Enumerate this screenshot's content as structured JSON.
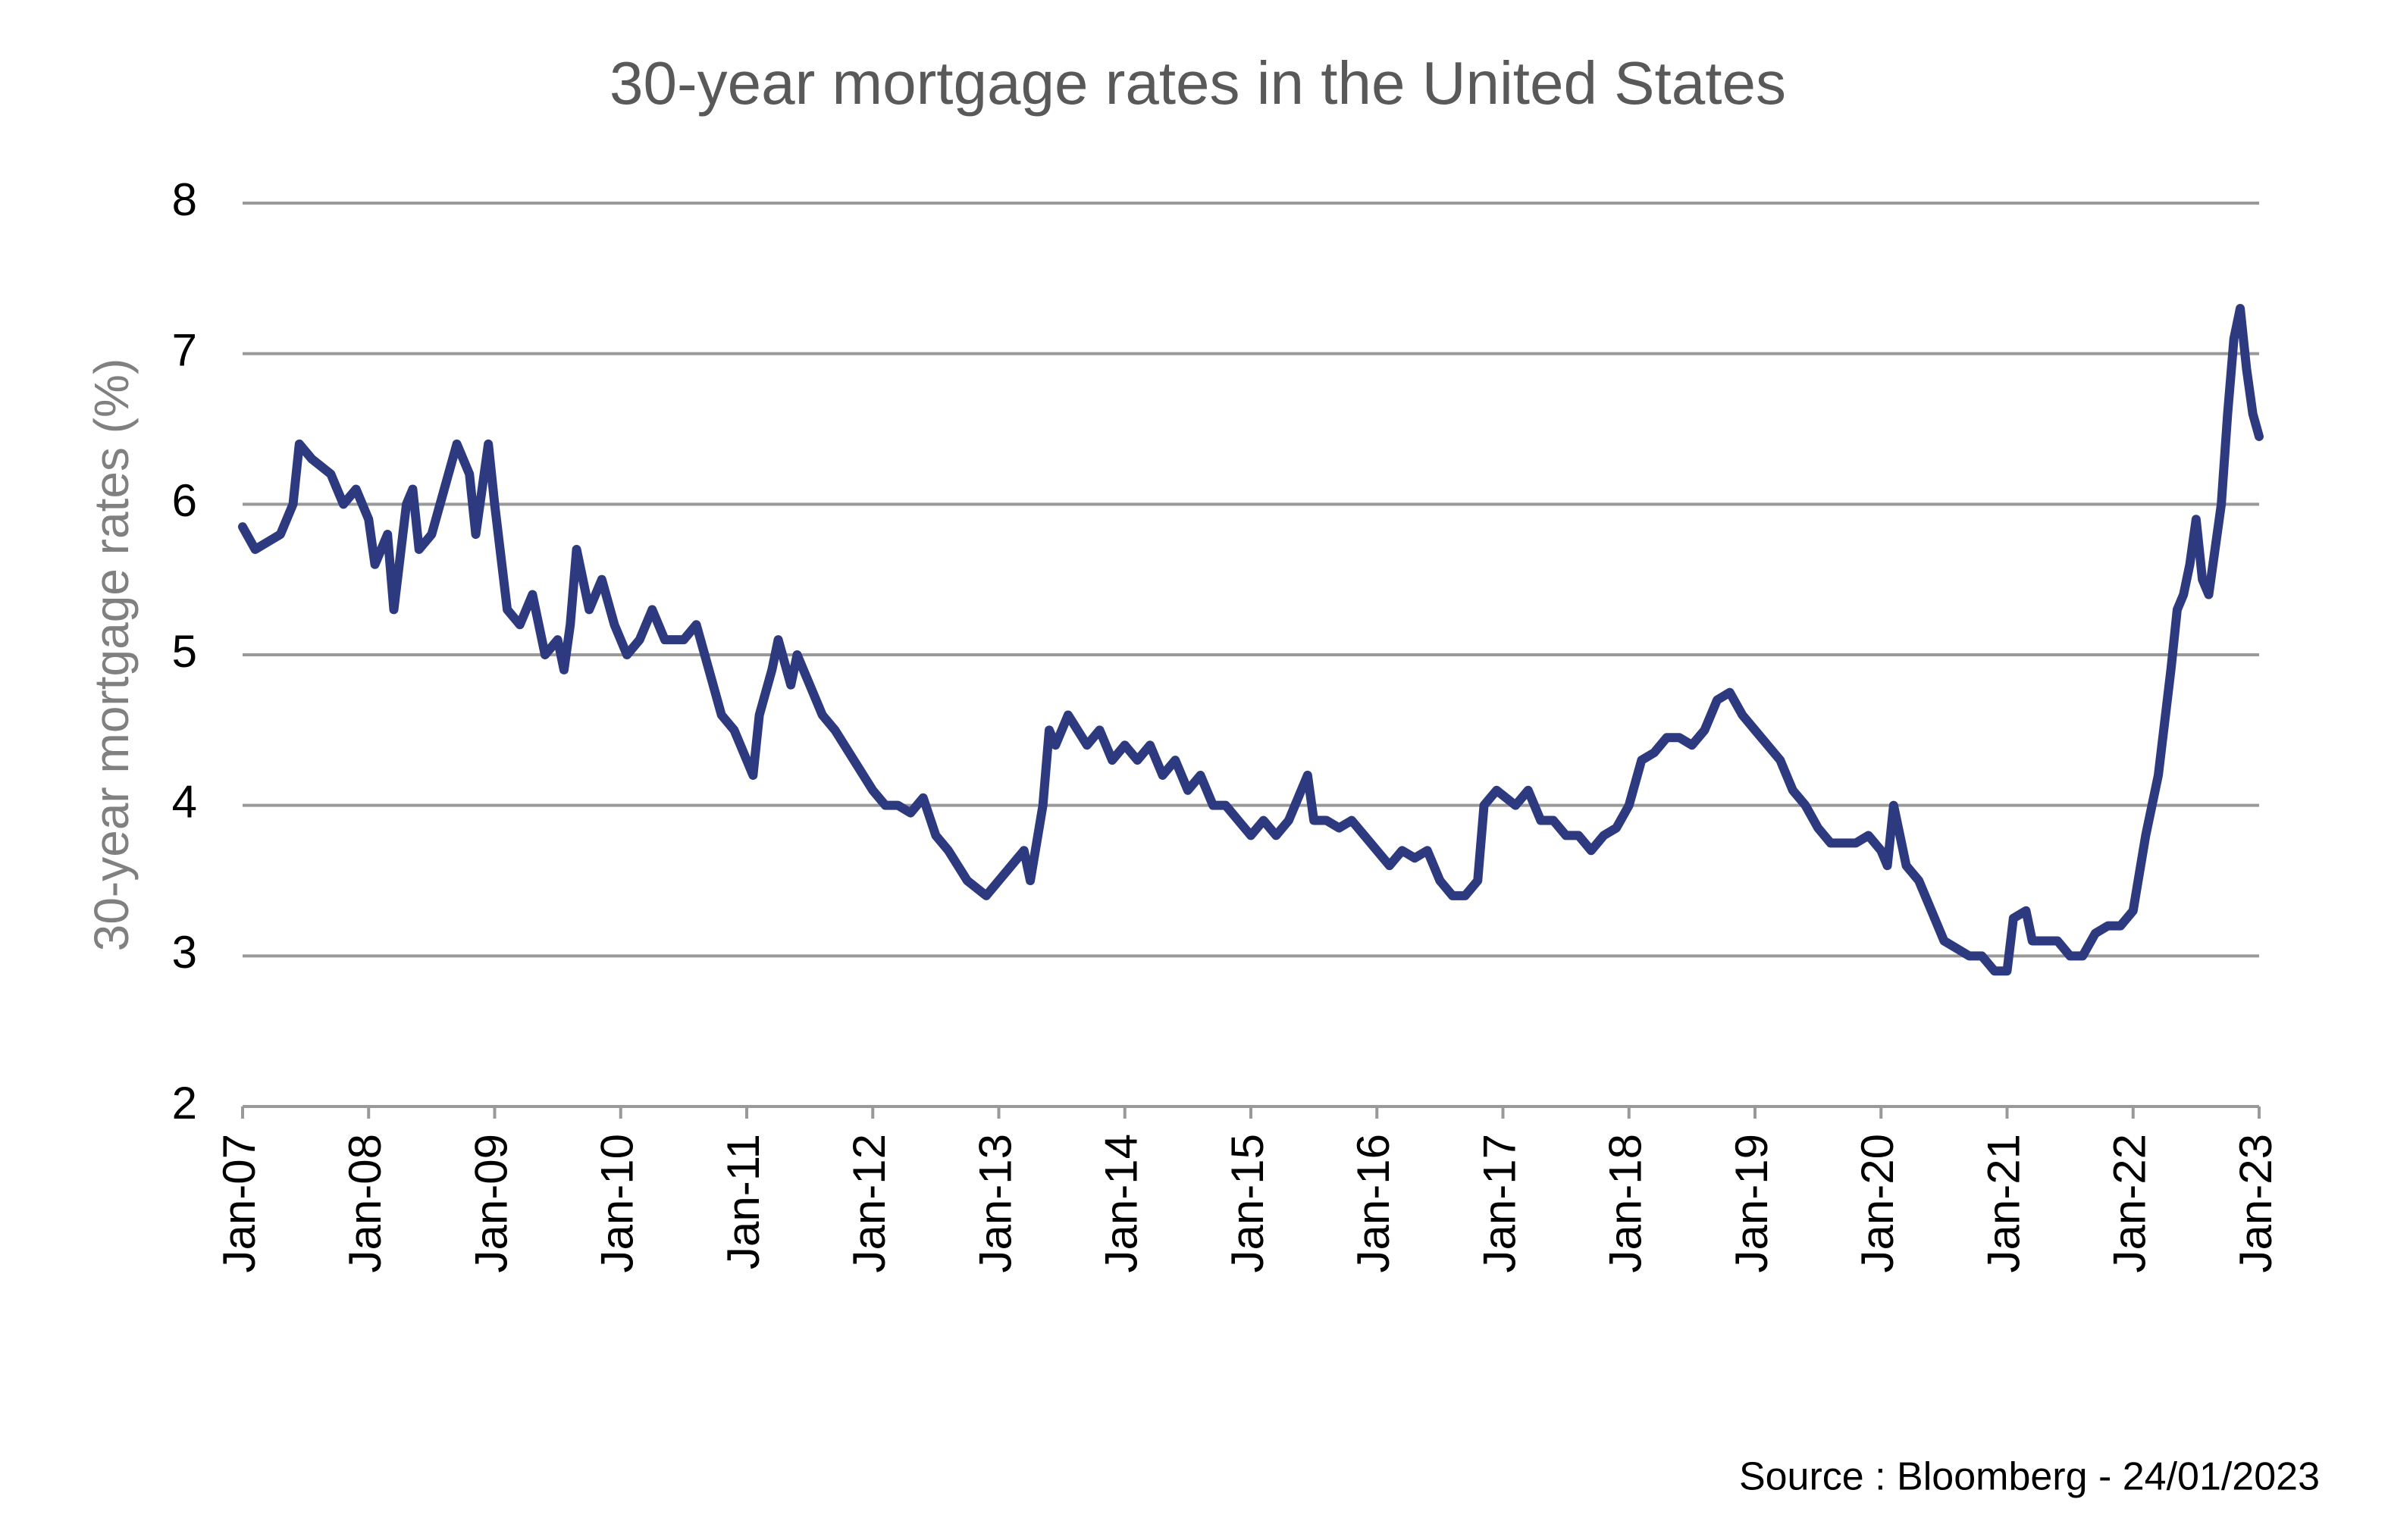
{
  "chart_data": {
    "type": "line",
    "title": "30-year mortgage rates in the United States",
    "y_label": "30-year mortgage rates (%)",
    "source": "Source : Bloomberg - 24/01/2023",
    "color": "#2e3a80",
    "grid": true,
    "xlim": [
      2007,
      2023
    ],
    "ylim": [
      2,
      8
    ],
    "yticks": [
      2,
      3,
      4,
      5,
      6,
      7,
      8
    ],
    "xticks": [
      {
        "value": 2007,
        "label": "Jan-07"
      },
      {
        "value": 2008,
        "label": "Jan-08"
      },
      {
        "value": 2009,
        "label": "Jan-09"
      },
      {
        "value": 2010,
        "label": "Jan-10"
      },
      {
        "value": 2011,
        "label": "Jan-11"
      },
      {
        "value": 2012,
        "label": "Jan-12"
      },
      {
        "value": 2013,
        "label": "Jan-13"
      },
      {
        "value": 2014,
        "label": "Jan-14"
      },
      {
        "value": 2015,
        "label": "Jan-15"
      },
      {
        "value": 2016,
        "label": "Jan-16"
      },
      {
        "value": 2017,
        "label": "Jan-17"
      },
      {
        "value": 2018,
        "label": "Jan-18"
      },
      {
        "value": 2019,
        "label": "Jan-19"
      },
      {
        "value": 2020,
        "label": "Jan-20"
      },
      {
        "value": 2021,
        "label": "Jan-21"
      },
      {
        "value": 2022,
        "label": "Jan-22"
      },
      {
        "value": 2023,
        "label": "Jan-23"
      }
    ],
    "x": [
      2007.0,
      2007.1,
      2007.2,
      2007.3,
      2007.4,
      2007.45,
      2007.55,
      2007.7,
      2007.8,
      2007.9,
      2008.0,
      2008.05,
      2008.15,
      2008.2,
      2008.3,
      2008.35,
      2008.4,
      2008.5,
      2008.6,
      2008.7,
      2008.8,
      2008.85,
      2008.95,
      2009.0,
      2009.1,
      2009.2,
      2009.3,
      2009.4,
      2009.5,
      2009.55,
      2009.6,
      2009.65,
      2009.75,
      2009.85,
      2009.95,
      2010.05,
      2010.15,
      2010.25,
      2010.35,
      2010.5,
      2010.6,
      2010.7,
      2010.8,
      2010.9,
      2011.0,
      2011.05,
      2011.1,
      2011.2,
      2011.25,
      2011.35,
      2011.4,
      2011.5,
      2011.6,
      2011.7,
      2011.85,
      2012.0,
      2012.1,
      2012.2,
      2012.3,
      2012.4,
      2012.5,
      2012.6,
      2012.75,
      2012.9,
      2013.0,
      2013.1,
      2013.2,
      2013.25,
      2013.35,
      2013.4,
      2013.45,
      2013.55,
      2013.7,
      2013.8,
      2013.9,
      2014.0,
      2014.1,
      2014.2,
      2014.3,
      2014.4,
      2014.5,
      2014.6,
      2014.7,
      2014.8,
      2015.0,
      2015.1,
      2015.2,
      2015.3,
      2015.4,
      2015.45,
      2015.5,
      2015.6,
      2015.7,
      2015.8,
      2015.9,
      2016.0,
      2016.1,
      2016.2,
      2016.3,
      2016.4,
      2016.5,
      2016.6,
      2016.7,
      2016.8,
      2016.85,
      2016.95,
      2017.1,
      2017.2,
      2017.3,
      2017.4,
      2017.5,
      2017.6,
      2017.7,
      2017.8,
      2017.9,
      2018.0,
      2018.1,
      2018.2,
      2018.3,
      2018.4,
      2018.5,
      2018.6,
      2018.7,
      2018.8,
      2018.9,
      2019.0,
      2019.1,
      2019.2,
      2019.3,
      2019.4,
      2019.5,
      2019.6,
      2019.7,
      2019.8,
      2019.9,
      2020.0,
      2020.05,
      2020.1,
      2020.2,
      2020.3,
      2020.4,
      2020.5,
      2020.6,
      2020.7,
      2020.8,
      2020.9,
      2021.0,
      2021.05,
      2021.15,
      2021.2,
      2021.4,
      2021.5,
      2021.6,
      2021.7,
      2021.8,
      2021.9,
      2022.0,
      2022.1,
      2022.2,
      2022.3,
      2022.35,
      2022.4,
      2022.45,
      2022.5,
      2022.55,
      2022.6,
      2022.7,
      2022.75,
      2022.8,
      2022.85,
      2022.9,
      2022.95,
      2023.0
    ],
    "values": [
      5.85,
      5.7,
      5.75,
      5.8,
      6.0,
      6.4,
      6.3,
      6.2,
      6.0,
      6.1,
      5.9,
      5.6,
      5.8,
      5.3,
      6.0,
      6.1,
      5.7,
      5.8,
      6.1,
      6.4,
      6.2,
      5.8,
      6.4,
      6.0,
      5.3,
      5.2,
      5.4,
      5.0,
      5.1,
      4.9,
      5.2,
      5.7,
      5.3,
      5.5,
      5.2,
      5.0,
      5.1,
      5.3,
      5.1,
      5.1,
      5.2,
      4.9,
      4.6,
      4.5,
      4.3,
      4.2,
      4.6,
      4.9,
      5.1,
      4.8,
      5.0,
      4.8,
      4.6,
      4.5,
      4.3,
      4.1,
      4.0,
      4.0,
      3.95,
      4.05,
      3.8,
      3.7,
      3.5,
      3.4,
      3.5,
      3.6,
      3.7,
      3.5,
      4.0,
      4.5,
      4.4,
      4.6,
      4.4,
      4.5,
      4.3,
      4.4,
      4.3,
      4.4,
      4.2,
      4.3,
      4.1,
      4.2,
      4.0,
      4.0,
      3.8,
      3.9,
      3.8,
      3.9,
      4.1,
      4.2,
      3.9,
      3.9,
      3.85,
      3.9,
      3.8,
      3.7,
      3.6,
      3.7,
      3.65,
      3.7,
      3.5,
      3.4,
      3.4,
      3.5,
      4.0,
      4.1,
      4.0,
      4.1,
      3.9,
      3.9,
      3.8,
      3.8,
      3.7,
      3.8,
      3.85,
      4.0,
      4.3,
      4.35,
      4.45,
      4.45,
      4.4,
      4.5,
      4.7,
      4.75,
      4.6,
      4.5,
      4.4,
      4.3,
      4.1,
      4.0,
      3.85,
      3.75,
      3.75,
      3.75,
      3.8,
      3.7,
      3.6,
      4.0,
      3.6,
      3.5,
      3.3,
      3.1,
      3.05,
      3.0,
      3.0,
      2.9,
      2.9,
      3.25,
      3.3,
      3.1,
      3.1,
      3.0,
      3.0,
      3.15,
      3.2,
      3.2,
      3.3,
      3.8,
      4.2,
      4.9,
      5.3,
      5.4,
      5.6,
      5.9,
      5.5,
      5.4,
      6.0,
      6.6,
      7.1,
      7.3,
      6.9,
      6.6,
      6.45
    ]
  }
}
